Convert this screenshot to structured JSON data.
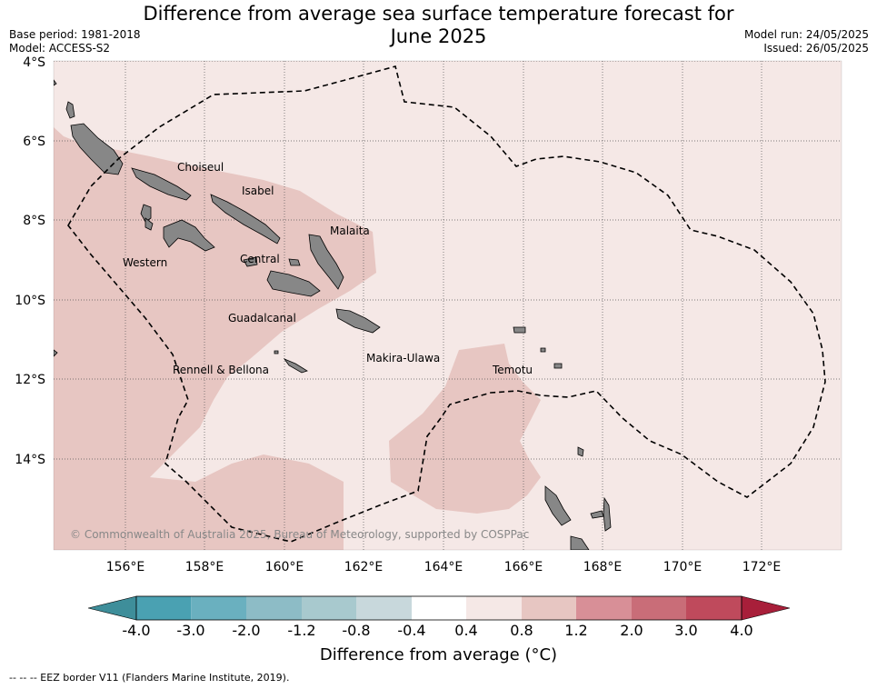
{
  "header": {
    "title_line1": "Difference from average sea surface temperature forecast for",
    "title_line2": "June 2025",
    "base_period": "Base period: 1981-2018",
    "model": "Model: ACCESS-S2",
    "model_run": "Model run: 24/05/2025",
    "issued": "Issued: 26/05/2025"
  },
  "map": {
    "lat_labels": [
      "4°S",
      "6°S",
      "8°S",
      "10°S",
      "12°S",
      "14°S"
    ],
    "lon_labels": [
      "156°E",
      "158°E",
      "160°E",
      "162°E",
      "164°E",
      "166°E",
      "168°E",
      "170°E",
      "172°E"
    ],
    "provinces": [
      "Choiseul",
      "Isabel",
      "Malaita",
      "Western",
      "Central",
      "Guadalcanal",
      "Makira-Ulawa",
      "Rennell & Bellona",
      "Temotu"
    ],
    "copyright": "© Commonwealth of Australia 2025, Bureau of Meteorology, supported by COSPPac",
    "colors": {
      "background_anomaly": "#f5e8e6",
      "warm_anomaly": "#e7c6c2",
      "land": "#878787",
      "eez_border": "#000000"
    }
  },
  "colorbar": {
    "title": "Difference from average (°C)",
    "ticks": [
      "-4.0",
      "-3.0",
      "-2.0",
      "-1.2",
      "-0.8",
      "-0.4",
      "0.4",
      "0.8",
      "1.2",
      "2.0",
      "3.0",
      "4.0"
    ],
    "colors": [
      "#3e8e9a",
      "#4aa1b2",
      "#6ab0bf",
      "#8dbcc6",
      "#a8c9ce",
      "#c8d8dc",
      "#ffffff",
      "#f5e8e6",
      "#e7c6c2",
      "#d88f97",
      "#c96d78",
      "#bf4a5c",
      "#a81f3a"
    ]
  },
  "footer": {
    "eez_note": "--  --  -- EEZ border V11 (Flanders Marine Institute, 2019)."
  }
}
